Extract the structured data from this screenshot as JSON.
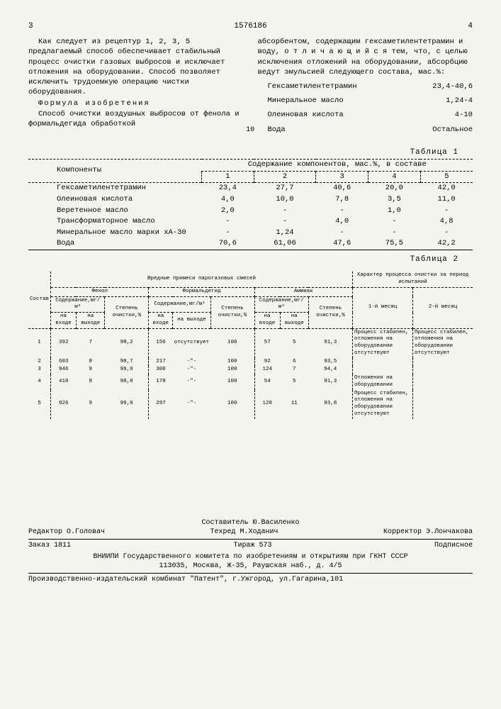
{
  "page": {
    "left_num": "3",
    "doc_num": "1576186",
    "right_num": "4",
    "margin_10": "10"
  },
  "colL": {
    "p1": "Как следует из рецептур 1, 2, 3, 5 предлагаемый способ обеспечивает стабильный процесс очистки газовых выбросов и исключает отложения на оборудовании. Способ позволяет исключить трудоемкую операцию чистки оборудования.",
    "formula_title": "Формула изобретения",
    "p2": "Способ очистки воздушных выбросов от фенола и формальдегида обработкой"
  },
  "colR": {
    "p1": "абсорбентом, содержащим гексаметилентетрамин и воду, о т л и ч а ю щ и й с я тем, что, с целью исключения отложений на оборудовании, абсорбцию ведут эмульсией следующего состава, мас.%:",
    "rows": [
      {
        "name": "Гексаметилентетрамин",
        "val": "23,4-40,6"
      },
      {
        "name": "Минеральное масло",
        "val": "1,24-4"
      },
      {
        "name": "Олеиновая кислота",
        "val": "4-10"
      },
      {
        "name": "Вода",
        "val": "Остальное"
      }
    ]
  },
  "t1": {
    "label": "Таблица 1",
    "h_comp": "Компоненты",
    "h_cont": "Содержание компонентов, мас.%, в составе",
    "cols": [
      "1",
      "2",
      "3",
      "4",
      "5"
    ],
    "rows": [
      {
        "n": "Гексаметилентетрамин",
        "v": [
          "23,4",
          "27,7",
          "40,6",
          "20,0",
          "42,0"
        ]
      },
      {
        "n": "Олеиновая кислота",
        "v": [
          "4,0",
          "10,0",
          "7,8",
          "3,5",
          "11,0"
        ]
      },
      {
        "n": "Веретенное масло",
        "v": [
          "2,0",
          "-",
          "-",
          "1,0",
          "-"
        ]
      },
      {
        "n": "Трансформаторное масло",
        "v": [
          "-",
          "-",
          "4,0",
          "-",
          "4,8"
        ]
      },
      {
        "n": "Минеральное масло марки хА-30",
        "v": [
          "-",
          "1,24",
          "-",
          "-",
          "-"
        ]
      },
      {
        "n": "Вода",
        "v": [
          "70,6",
          "61,06",
          "47,6",
          "75,5",
          "42,2"
        ]
      }
    ]
  },
  "t2": {
    "label": "Таблица 2",
    "h_top": "Вредные примеси парогазовых смесей",
    "h_char": "Характер процесса очистки за период испытаний",
    "h_sostav": "Состав",
    "groups": [
      "Фенол",
      "Формальдегид",
      "Аммиак"
    ],
    "sub": {
      "sod": "Содержание,мг/м³",
      "step": "Степень очистки,%",
      "vx": "на входе",
      "vy": "на выходе"
    },
    "months": [
      "1-й месяц",
      "2-й месяц"
    ],
    "rows": [
      {
        "n": "1",
        "f": [
          "392",
          "7",
          "98,2"
        ],
        "fa": [
          "156",
          "отсутствует",
          "100"
        ],
        "a": [
          "57",
          "5",
          "91,3"
        ],
        "c": [
          "Процесс стабилен, отложения на оборудовании отсутствуют",
          "Процесс стабилен, отложения на оборудовании отсутствуют"
        ]
      },
      {
        "n": "2",
        "f": [
          "603",
          "8",
          "98,7"
        ],
        "fa": [
          "217",
          "-\"-",
          "100"
        ],
        "a": [
          "92",
          "6",
          "93,5"
        ],
        "c": [
          "",
          ""
        ]
      },
      {
        "n": "3",
        "f": [
          "946",
          "9",
          "99,0"
        ],
        "fa": [
          "300",
          "-\"-",
          "100"
        ],
        "a": [
          "124",
          "7",
          "94,4"
        ],
        "c": [
          "",
          ""
        ]
      },
      {
        "n": "4",
        "f": [
          "410",
          "8",
          "98,0"
        ],
        "fa": [
          "178",
          "-\"-",
          "100"
        ],
        "a": [
          "54",
          "5",
          "91,3"
        ],
        "c": [
          "Отложения на оборудовании",
          ""
        ]
      },
      {
        "n": "5",
        "f": [
          "926",
          "9",
          "99,0"
        ],
        "fa": [
          "297",
          "-\"-",
          "100"
        ],
        "a": [
          "120",
          "11",
          "93,8"
        ],
        "c": [
          "Процесс стабилен, отложения на оборудовании отсутствуют",
          ""
        ]
      }
    ]
  },
  "footer": {
    "l1": {
      "a": "",
      "b": "Составитель Ю.Василенко",
      "c": ""
    },
    "l2": {
      "a": "Редактор О.Головач",
      "b": "Техред М.Ходанич",
      "c": "Корректор Э.Лончакова"
    },
    "l3": {
      "a": "Заказ 1811",
      "b": "Тираж 573",
      "c": "Подписное"
    },
    "l4": "ВНИИПИ Государственного комитета по изобретениям и открытиям при ГКНТ СССР",
    "l5": "113035, Москва, Ж-35, Раушская наб., д. 4/5",
    "l6": "Производственно-издательский комбинат \"Патент\", г.Ужгород, ул.Гагарина,101"
  }
}
